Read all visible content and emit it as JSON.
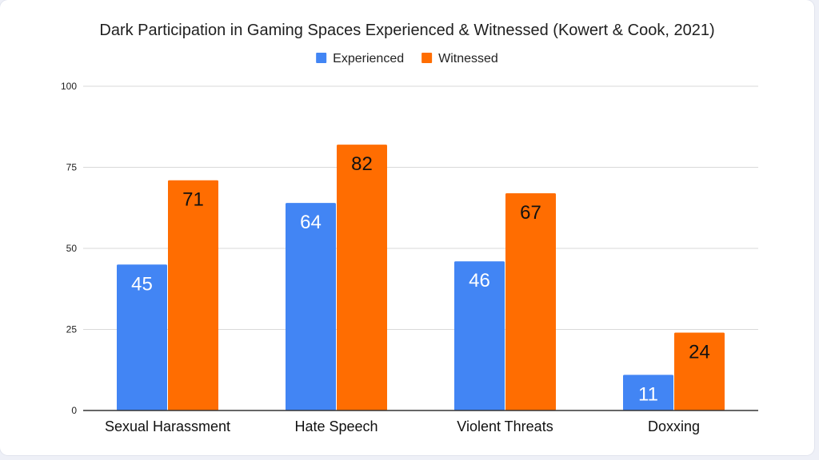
{
  "chart_data": {
    "type": "bar",
    "title": "Dark Participation in Gaming Spaces Experienced & Witnessed (Kowert & Cook, 2021)",
    "xlabel": "",
    "ylabel": "",
    "categories": [
      "Sexual Harassment",
      "Hate Speech",
      "Violent Threats",
      "Doxxing"
    ],
    "series": [
      {
        "name": "Experienced",
        "values": [
          45,
          64,
          46,
          11
        ],
        "color": "#4285f4",
        "label_color": "#ffffff"
      },
      {
        "name": "Witnessed",
        "values": [
          71,
          82,
          67,
          24
        ],
        "color": "#ff6d01",
        "label_color": "#111111"
      }
    ],
    "ylim": [
      0,
      100
    ],
    "yticks": [
      0,
      25,
      50,
      75,
      100
    ],
    "grid": true,
    "legend_position": "top-center",
    "axis_color": "#333333",
    "grid_color": "#d9d9d9"
  }
}
